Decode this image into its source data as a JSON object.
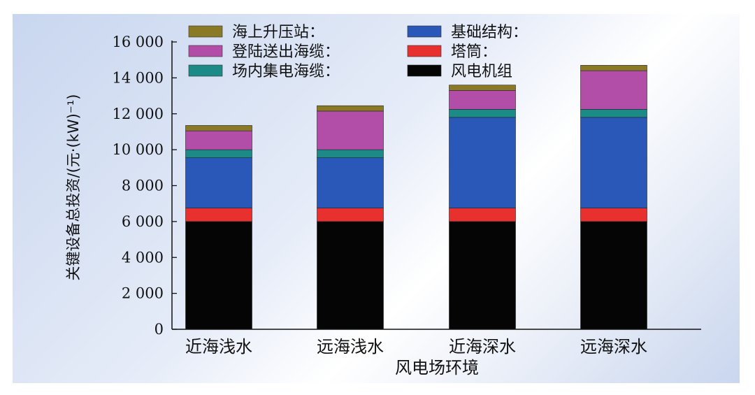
{
  "chart_data": {
    "type": "bar",
    "stacked": true,
    "categories": [
      "近海浅水",
      "远海浅水",
      "近海深水",
      "远海深水"
    ],
    "xlabel": "风电场环境",
    "ylabel": "关键设备总投资/(元·(kW)⁻¹)",
    "ylim": [
      0,
      16000
    ],
    "yticks": [
      0,
      2000,
      4000,
      6000,
      8000,
      10000,
      12000,
      14000,
      16000
    ],
    "ytick_labels": [
      "0",
      "2 000",
      "4 000",
      "6 000",
      "8 000",
      "10 000",
      "12 000",
      "14 000",
      "16 000"
    ],
    "legend_position": "top",
    "grid": false,
    "series": [
      {
        "name": "风电机组",
        "color": "#050505",
        "values": [
          6000,
          6000,
          6000,
          6000
        ]
      },
      {
        "name": "塔筒",
        "color": "#e8302e",
        "values": [
          750,
          750,
          750,
          750
        ]
      },
      {
        "name": "基础结构",
        "color": "#2a58b8",
        "values": [
          2800,
          2800,
          5050,
          5050
        ]
      },
      {
        "name": "场内集电海缆",
        "color": "#1c8a86",
        "values": [
          450,
          450,
          450,
          450
        ]
      },
      {
        "name": "登陆送出海缆",
        "color": "#b24ea8",
        "values": [
          1050,
          2150,
          1050,
          2150
        ]
      },
      {
        "name": "海上升压站",
        "color": "#8a7a26",
        "values": [
          300,
          300,
          300,
          300
        ]
      }
    ],
    "legend": [
      {
        "label": "海上升压站：",
        "series": 5
      },
      {
        "label": "基础结构：",
        "series": 2
      },
      {
        "label": "登陆送出海缆：",
        "series": 4
      },
      {
        "label": "塔筒：",
        "series": 1
      },
      {
        "label": "场内集电海缆：",
        "series": 3
      },
      {
        "label": "风电机组",
        "series": 0
      }
    ]
  }
}
